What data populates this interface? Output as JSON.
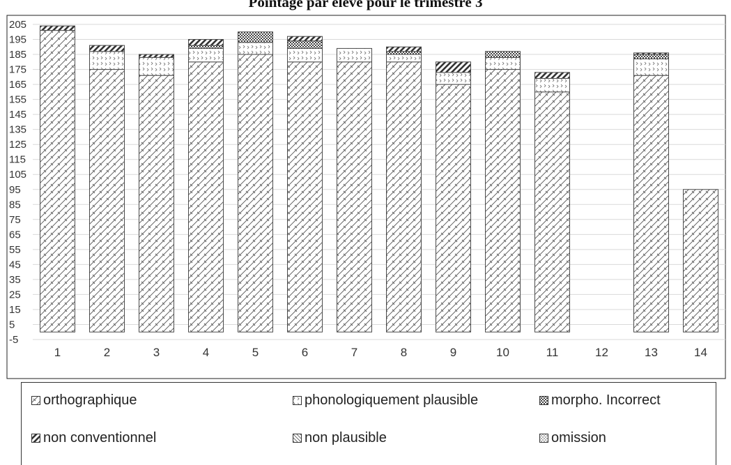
{
  "chart_data": {
    "type": "bar",
    "stacked": true,
    "title": "Pointage par élève pour le trimestre 3",
    "xlabel": "",
    "ylabel": "",
    "ylim": [
      -5,
      205
    ],
    "yticks": [
      205,
      195,
      185,
      175,
      165,
      155,
      145,
      135,
      125,
      115,
      105,
      95,
      85,
      75,
      65,
      55,
      45,
      35,
      25,
      15,
      5,
      -5
    ],
    "categories": [
      "1",
      "2",
      "3",
      "4",
      "5",
      "6",
      "7",
      "8",
      "9",
      "10",
      "11",
      "12",
      "13",
      "14"
    ],
    "grid": true,
    "legend_position": "bottom",
    "series": [
      {
        "name": "orthographique",
        "pattern": "diag-cross",
        "values": [
          201,
          175,
          171,
          180,
          185,
          180,
          180,
          180,
          165,
          175,
          160,
          0,
          171,
          95
        ]
      },
      {
        "name": "phonologiquement plausible",
        "pattern": "dots",
        "values": [
          0,
          12,
          12,
          9,
          8,
          9,
          9,
          5,
          8,
          8,
          9,
          0,
          11,
          0
        ]
      },
      {
        "name": "morpho. Incorrect",
        "pattern": "checker",
        "values": [
          0,
          0,
          0,
          2,
          7,
          5,
          0,
          2,
          0,
          4,
          0,
          0,
          3,
          0
        ]
      },
      {
        "name": "non conventionnel",
        "pattern": "thick-diag",
        "values": [
          3,
          4,
          2,
          4,
          0,
          3,
          0,
          3,
          7,
          0,
          4,
          0,
          1,
          0
        ]
      },
      {
        "name": "non plausible",
        "pattern": "fine-diag",
        "values": [
          0,
          0,
          0,
          0,
          0,
          0,
          0,
          0,
          0,
          0,
          0,
          0,
          0,
          0
        ]
      },
      {
        "name": "omission",
        "pattern": "dense-dots",
        "values": [
          0,
          0,
          0,
          0,
          0,
          0,
          0,
          0,
          0,
          0,
          0,
          0,
          0,
          0
        ]
      }
    ],
    "colors": {
      "gridline": "#d9d9d9",
      "bar_stroke": "#4a4a4a",
      "pattern_stroke": "#555555"
    }
  }
}
